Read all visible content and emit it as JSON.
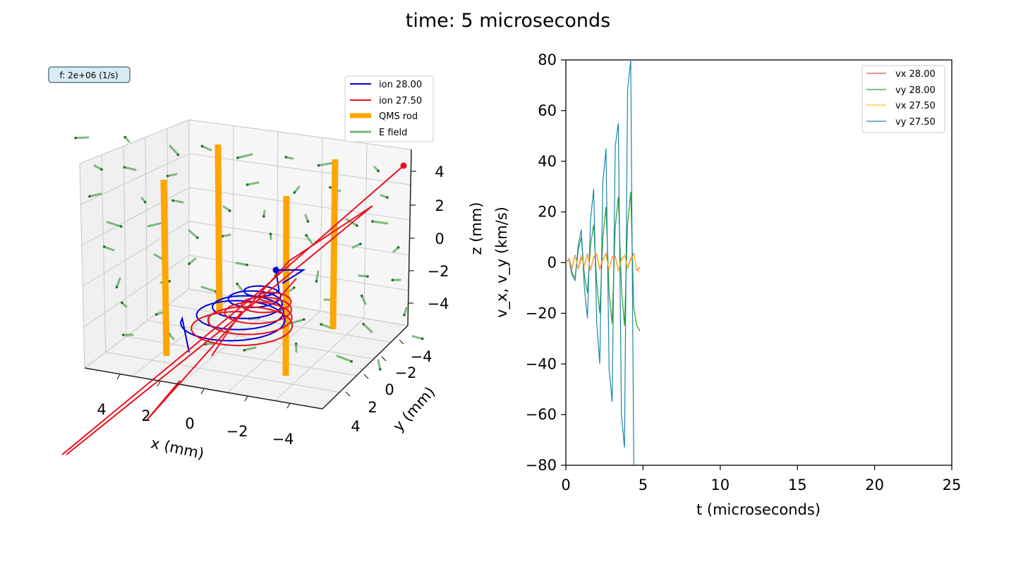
{
  "figure": {
    "title": "time: 5 microseconds"
  },
  "chart_data": [
    {
      "type": "3d-line",
      "annotation": "f: 2e+06 (1/s)",
      "xlabel": "x (mm)",
      "ylabel": "y (mm)",
      "zlabel": "z (mm)",
      "xlim": [
        -5,
        5
      ],
      "ylim": [
        -5,
        5
      ],
      "zlim": [
        -5,
        5
      ],
      "x_ticks": [
        "4",
        "2",
        "0",
        "−2",
        "−4"
      ],
      "y_ticks": [
        "−4",
        "−2",
        "0",
        "2",
        "4"
      ],
      "z_ticks": [
        "4",
        "2",
        "0",
        "−2",
        "−4"
      ],
      "grid": true,
      "legend": {
        "placement": "top-right"
      },
      "series": [
        {
          "name": "ion 28.00",
          "color": "#0000dd",
          "kind": "line"
        },
        {
          "name": "ion 27.50",
          "color": "#e8101f",
          "kind": "line"
        },
        {
          "name": "QMS rod",
          "color": "#ffa500",
          "kind": "rod"
        },
        {
          "name": "E field",
          "color": "#3a9a3a",
          "kind": "quiver"
        }
      ]
    },
    {
      "type": "line",
      "xlabel": "t (microseconds)",
      "ylabel": "v_x, v_y (km/s)",
      "xlim": [
        0,
        25
      ],
      "ylim": [
        -80,
        80
      ],
      "x_ticks": [
        0,
        5,
        10,
        15,
        20,
        25
      ],
      "y_ticks": [
        80,
        60,
        40,
        20,
        0,
        -20,
        -40,
        -60,
        -80
      ],
      "grid": false,
      "legend": {
        "placement": "top-right"
      },
      "series": [
        {
          "name": "vx 28.00",
          "color": "#e8524a",
          "t": [
            0,
            0.2,
            0.4,
            0.6,
            0.8,
            1.0,
            1.2,
            1.4,
            1.6,
            1.8,
            2.0,
            2.2,
            2.4,
            2.6,
            2.8,
            3.0,
            3.2,
            3.4,
            3.6,
            3.8,
            4.0,
            4.2,
            4.4,
            4.6,
            4.8
          ],
          "values": [
            0,
            1.5,
            -2,
            3,
            -2.5,
            2,
            -1,
            3.5,
            -3,
            2,
            3,
            -2.5,
            1,
            3.5,
            -3,
            2,
            2.5,
            -3,
            1,
            3,
            -2,
            1.5,
            3.5,
            -3,
            -2
          ]
        },
        {
          "name": "vy 28.00",
          "color": "#2e9a2e",
          "t": [
            0,
            0.2,
            0.4,
            0.6,
            0.8,
            1.0,
            1.2,
            1.4,
            1.6,
            1.8,
            2.0,
            2.2,
            2.4,
            2.6,
            2.8,
            3.0,
            3.2,
            3.4,
            3.6,
            3.8,
            4.0,
            4.2,
            4.4,
            4.6,
            4.8
          ],
          "values": [
            0,
            1,
            -4,
            -6,
            5,
            10,
            -5,
            -12,
            7,
            15,
            -8,
            -20,
            10,
            22,
            -12,
            -24,
            14,
            26,
            -10,
            -25,
            15,
            28,
            -18,
            -25,
            -27
          ]
        },
        {
          "name": "vx 27.50",
          "color": "#ffc229",
          "t": [
            0,
            0.2,
            0.4,
            0.6,
            0.8,
            1.0,
            1.2,
            1.4,
            1.6,
            1.8,
            2.0,
            2.2,
            2.4,
            2.6,
            2.8,
            3.0,
            3.2,
            3.4,
            3.6,
            3.8,
            4.0,
            4.2,
            4.4,
            4.6,
            4.8
          ],
          "values": [
            0,
            1,
            -2.5,
            2.5,
            -2,
            3,
            -1.5,
            3,
            -2.5,
            2.5,
            3.5,
            -2,
            1.5,
            3,
            -3,
            2.5,
            2,
            -3.5,
            1.5,
            3,
            -2.5,
            1,
            3,
            -2.5,
            -4
          ]
        },
        {
          "name": "vy 27.50",
          "color": "#1a86ac",
          "t": [
            0,
            0.2,
            0.4,
            0.6,
            0.8,
            1.0,
            1.2,
            1.4,
            1.6,
            1.8,
            2.0,
            2.2,
            2.4,
            2.6,
            2.8,
            3.0,
            3.2,
            3.4,
            3.6,
            3.8,
            4.0,
            4.2,
            4.4
          ],
          "values": [
            0,
            1,
            -5,
            -7,
            7,
            13,
            -10,
            -22,
            17,
            29,
            -24,
            -40,
            32,
            45,
            -42,
            -55,
            46,
            55,
            -60,
            -73,
            68,
            80,
            -80
          ]
        }
      ]
    }
  ]
}
